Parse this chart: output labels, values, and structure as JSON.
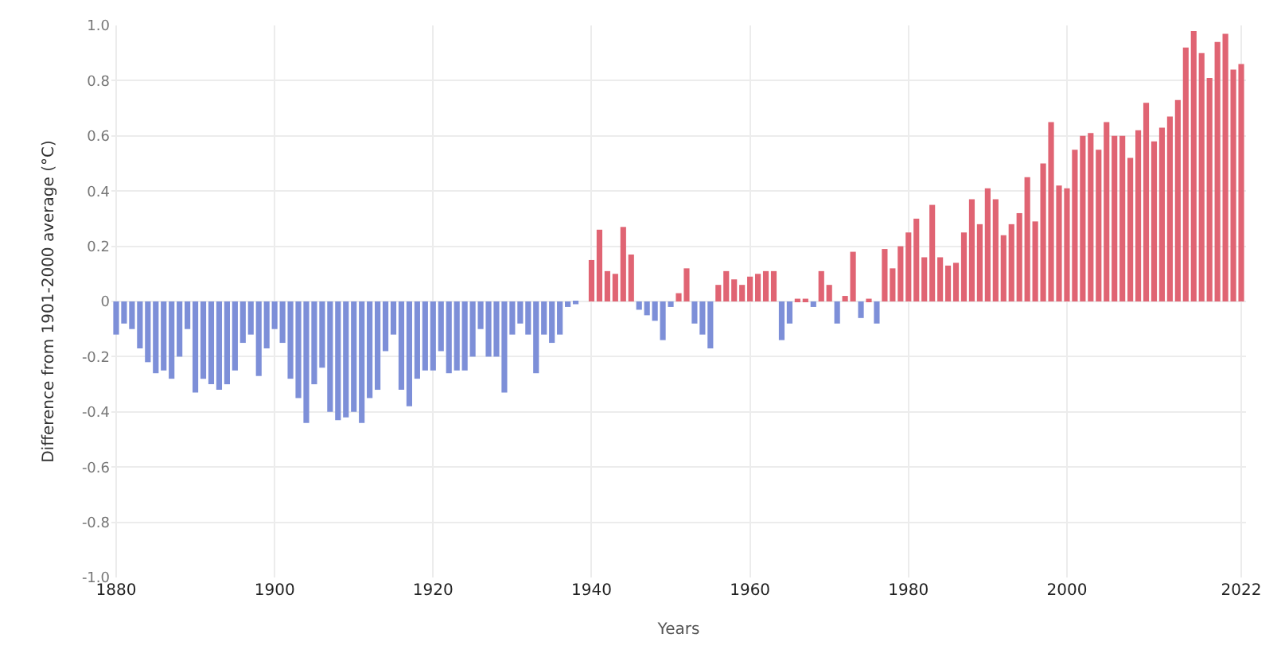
{
  "chart_data": {
    "type": "bar",
    "xlabel": "Years",
    "ylabel": "Difference from 1901-2000 average (°C)",
    "x": [
      1880,
      1881,
      1882,
      1883,
      1884,
      1885,
      1886,
      1887,
      1888,
      1889,
      1890,
      1891,
      1892,
      1893,
      1894,
      1895,
      1896,
      1897,
      1898,
      1899,
      1900,
      1901,
      1902,
      1903,
      1904,
      1905,
      1906,
      1907,
      1908,
      1909,
      1910,
      1911,
      1912,
      1913,
      1914,
      1915,
      1916,
      1917,
      1918,
      1919,
      1920,
      1921,
      1922,
      1923,
      1924,
      1925,
      1926,
      1927,
      1928,
      1929,
      1930,
      1931,
      1932,
      1933,
      1934,
      1935,
      1936,
      1937,
      1938,
      1939,
      1940,
      1941,
      1942,
      1943,
      1944,
      1945,
      1946,
      1947,
      1948,
      1949,
      1950,
      1951,
      1952,
      1953,
      1954,
      1955,
      1956,
      1957,
      1958,
      1959,
      1960,
      1961,
      1962,
      1963,
      1964,
      1965,
      1966,
      1967,
      1968,
      1969,
      1970,
      1971,
      1972,
      1973,
      1974,
      1975,
      1976,
      1977,
      1978,
      1979,
      1980,
      1981,
      1982,
      1983,
      1984,
      1985,
      1986,
      1987,
      1988,
      1989,
      1990,
      1991,
      1992,
      1993,
      1994,
      1995,
      1996,
      1997,
      1998,
      1999,
      2000,
      2001,
      2002,
      2003,
      2004,
      2005,
      2006,
      2007,
      2008,
      2009,
      2010,
      2011,
      2012,
      2013,
      2014,
      2015,
      2016,
      2017,
      2018,
      2019,
      2020,
      2021,
      2022
    ],
    "series": [
      {
        "color": "#7d8fd8",
        "values": [
          -0.12,
          -0.08,
          -0.1,
          -0.17,
          -0.22,
          -0.26,
          -0.25,
          -0.28,
          -0.2,
          -0.1,
          -0.33,
          -0.28,
          -0.3,
          -0.32,
          -0.3,
          -0.25,
          -0.15,
          -0.12,
          -0.27,
          -0.17,
          -0.1,
          -0.15,
          -0.28,
          -0.35,
          -0.44,
          -0.3,
          -0.24,
          -0.4,
          -0.43,
          -0.42,
          -0.4,
          -0.44,
          -0.35,
          -0.32,
          -0.18,
          -0.12,
          -0.32,
          -0.38,
          -0.28,
          -0.25,
          -0.25,
          -0.18,
          -0.26,
          -0.25,
          -0.25,
          -0.2,
          -0.1,
          -0.2,
          -0.2,
          -0.33,
          -0.12,
          -0.08,
          -0.12,
          -0.26,
          -0.12,
          -0.15,
          -0.12,
          -0.02,
          -0.01,
          null,
          null,
          null,
          null,
          null,
          null,
          null,
          -0.03,
          -0.05,
          -0.07,
          -0.14,
          -0.02,
          null,
          null,
          -0.08,
          -0.12,
          -0.17,
          null,
          null,
          null,
          null,
          null,
          null,
          null,
          null,
          -0.14,
          -0.08,
          null,
          null,
          -0.02,
          null,
          null,
          -0.08,
          null,
          null,
          -0.06,
          null,
          -0.08,
          null,
          null,
          null,
          null,
          null,
          null,
          null,
          null,
          null,
          null,
          null,
          null,
          null,
          null,
          null,
          null,
          null,
          null,
          null,
          null,
          null,
          null,
          null,
          null,
          null,
          null,
          null,
          null,
          null,
          null,
          null,
          null,
          null,
          null,
          null,
          null,
          null,
          null,
          null,
          null,
          null,
          null,
          null,
          null,
          null,
          null
        ]
      },
      {
        "color": "#e06473",
        "values": [
          null,
          null,
          null,
          null,
          null,
          null,
          null,
          null,
          null,
          null,
          null,
          null,
          null,
          null,
          null,
          null,
          null,
          null,
          null,
          null,
          null,
          null,
          null,
          null,
          null,
          null,
          null,
          null,
          null,
          null,
          null,
          null,
          null,
          null,
          null,
          null,
          null,
          null,
          null,
          null,
          null,
          null,
          null,
          null,
          null,
          null,
          null,
          null,
          null,
          null,
          null,
          null,
          null,
          null,
          null,
          null,
          null,
          null,
          null,
          null,
          0.15,
          0.26,
          0.11,
          0.1,
          0.27,
          0.17,
          null,
          null,
          null,
          null,
          null,
          0.03,
          0.12,
          null,
          null,
          null,
          0.06,
          0.11,
          0.08,
          0.06,
          0.09,
          0.1,
          0.11,
          0.11,
          null,
          null,
          0.01,
          0.01,
          null,
          0.11,
          0.06,
          null,
          0.02,
          0.18,
          null,
          0.01,
          null,
          0.19,
          0.12,
          0.2,
          0.25,
          0.3,
          0.16,
          0.35,
          0.16,
          0.13,
          0.14,
          0.25,
          0.37,
          0.28,
          0.41,
          0.37,
          0.24,
          0.28,
          0.32,
          0.45,
          0.29,
          0.5,
          0.65,
          0.42,
          0.41,
          0.55,
          0.6,
          0.61,
          0.55,
          0.65,
          0.6,
          0.6,
          0.52,
          0.62,
          0.72,
          0.58,
          0.63,
          0.67,
          0.73,
          0.92,
          0.98,
          0.9,
          0.81,
          0.94,
          0.97,
          0.84,
          0.86
        ]
      }
    ],
    "xlim": [
      1879.4,
      2022.6
    ],
    "xticks": [
      1880,
      1900,
      1920,
      1940,
      1960,
      1980,
      2000,
      2022
    ],
    "ylim": [
      -1.0,
      1.0
    ],
    "yticks": [
      {
        "value": 1.0,
        "label": "1.0"
      },
      {
        "value": 0.8,
        "label": "0.8"
      },
      {
        "value": 0.6,
        "label": "0.6"
      },
      {
        "value": 0.4,
        "label": "0.4"
      },
      {
        "value": 0.2,
        "label": "0.2"
      },
      0,
      {
        "value": -0.2,
        "label": "-0.2"
      },
      {
        "value": -0.4,
        "label": "-0.4"
      },
      {
        "value": -0.6,
        "label": "-0.6"
      },
      {
        "value": -0.8,
        "label": "-0.8"
      },
      {
        "value": -1.0,
        "label": "-1.0"
      }
    ],
    "grid": true
  }
}
